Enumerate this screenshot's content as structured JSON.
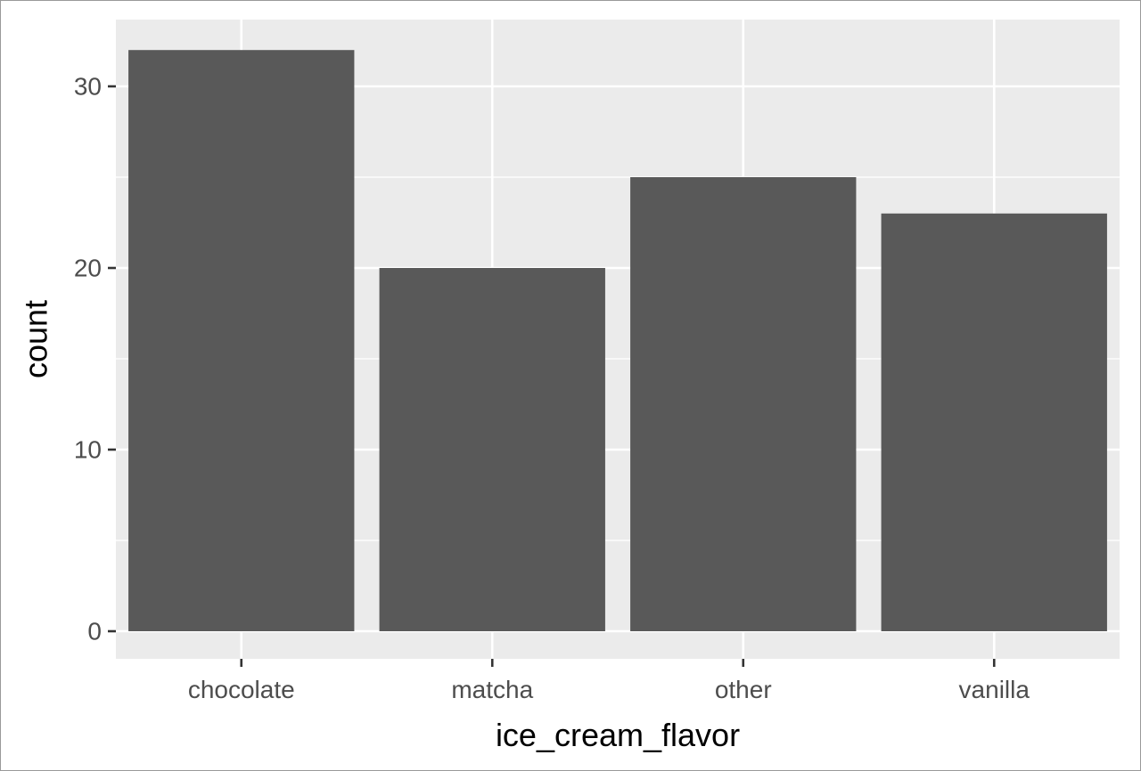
{
  "chart_data": {
    "type": "bar",
    "title": "",
    "xlabel": "ice_cream_flavor",
    "ylabel": "count",
    "categories": [
      "chocolate",
      "matcha",
      "other",
      "vanilla"
    ],
    "values": [
      32,
      20,
      25,
      23
    ],
    "ylim": [
      0,
      33.6
    ],
    "yticks": [
      0,
      10,
      20,
      30
    ],
    "grid": true,
    "legend": "none",
    "colors": {
      "bar": "#595959",
      "panel": "#ebebeb",
      "grid": "#ffffff",
      "tick": "#333333"
    }
  }
}
